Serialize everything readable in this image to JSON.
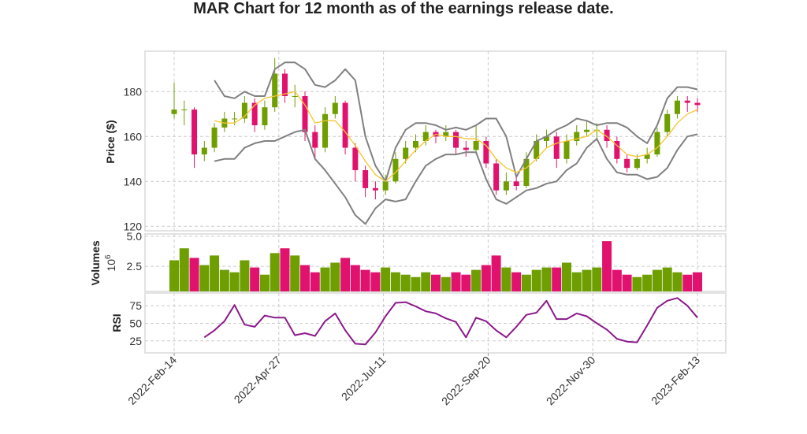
{
  "chart_data": {
    "type": "candlestick",
    "title": "MAR Chart for 12 month as of the earnings release date.",
    "colors": {
      "up": "#6e9e00",
      "down": "#e0126e",
      "bollinger": "#808080",
      "sma": "#f7c531",
      "rsi": "#8b1a8b",
      "grid": "#cccccc",
      "frame": "#e3e3e3"
    },
    "x_ticks": [
      "2022-Feb-14",
      "2022-Apr-27",
      "2022-Jul-11",
      "2022-Sep-20",
      "2022-Nov-30",
      "2023-Feb-13"
    ],
    "grid": true,
    "panels": {
      "price": {
        "ylabel": "Price ($)",
        "ylim": [
          118,
          198
        ],
        "yticks": [
          120,
          140,
          160,
          180
        ]
      },
      "volume": {
        "ylabel": "Volumes",
        "unit": "10^6",
        "ylim": [
          0.4,
          5.2
        ],
        "yticks": [
          2.5,
          5.0
        ],
        "ytick_labels": [
          "2.5",
          "5.0"
        ]
      },
      "rsi": {
        "ylabel": "RSI",
        "ylim": [
          8,
          93
        ],
        "yticks": [
          25,
          50,
          75
        ]
      }
    },
    "columns": [
      "date",
      "open",
      "high",
      "low",
      "close",
      "volume_millions"
    ],
    "rows": [
      [
        "2022-02-14",
        170,
        184,
        168,
        172,
        3.0
      ],
      [
        "2022-02-21",
        172,
        176,
        165,
        172,
        4.0
      ],
      [
        "2022-02-28",
        172,
        173,
        146,
        152,
        3.2
      ],
      [
        "2022-03-07",
        152,
        158,
        149,
        155,
        2.6
      ],
      [
        "2022-03-14",
        155,
        166,
        153,
        164,
        3.4
      ],
      [
        "2022-03-21",
        164,
        171,
        162,
        168,
        2.2
      ],
      [
        "2022-03-28",
        168,
        171,
        165,
        168,
        2.0
      ],
      [
        "2022-04-04",
        168,
        178,
        166,
        175,
        3.0
      ],
      [
        "2022-04-11",
        175,
        177,
        162,
        165,
        2.4
      ],
      [
        "2022-04-18",
        165,
        176,
        163,
        173,
        1.8
      ],
      [
        "2022-04-25",
        173,
        195,
        171,
        188,
        3.6
      ],
      [
        "2022-05-02",
        188,
        190,
        175,
        178,
        4.0
      ],
      [
        "2022-05-09",
        178,
        183,
        173,
        178,
        3.4
      ],
      [
        "2022-05-16",
        178,
        180,
        158,
        162,
        2.6
      ],
      [
        "2022-05-23",
        162,
        165,
        150,
        155,
        2.0
      ],
      [
        "2022-05-30",
        155,
        173,
        153,
        170,
        2.4
      ],
      [
        "2022-06-06",
        170,
        178,
        168,
        175,
        2.8
      ],
      [
        "2022-06-13",
        175,
        176,
        152,
        155,
        3.2
      ],
      [
        "2022-06-20",
        155,
        157,
        140,
        145,
        2.6
      ],
      [
        "2022-06-27",
        145,
        147,
        133,
        137,
        2.2
      ],
      [
        "2022-07-04",
        137,
        140,
        132,
        136,
        2.0
      ],
      [
        "2022-07-11",
        136,
        143,
        134,
        140,
        2.4
      ],
      [
        "2022-07-18",
        140,
        153,
        139,
        150,
        2.0
      ],
      [
        "2022-07-25",
        150,
        158,
        148,
        155,
        1.8
      ],
      [
        "2022-08-01",
        155,
        161,
        153,
        158,
        1.6
      ],
      [
        "2022-08-08",
        158,
        165,
        156,
        162,
        2.0
      ],
      [
        "2022-08-15",
        162,
        163,
        157,
        160,
        1.8
      ],
      [
        "2022-08-22",
        160,
        165,
        158,
        162,
        1.6
      ],
      [
        "2022-08-29",
        162,
        163,
        152,
        155,
        2.0
      ],
      [
        "2022-09-05",
        155,
        158,
        151,
        154,
        1.8
      ],
      [
        "2022-09-12",
        154,
        165,
        152,
        158,
        2.2
      ],
      [
        "2022-09-19",
        158,
        160,
        146,
        148,
        2.6
      ],
      [
        "2022-09-26",
        148,
        150,
        134,
        136,
        3.4
      ],
      [
        "2022-10-03",
        136,
        144,
        134,
        140,
        2.4
      ],
      [
        "2022-10-10",
        140,
        142,
        136,
        138,
        2.0
      ],
      [
        "2022-10-17",
        138,
        153,
        137,
        150,
        1.8
      ],
      [
        "2022-10-24",
        150,
        161,
        149,
        158,
        2.2
      ],
      [
        "2022-10-31",
        158,
        163,
        155,
        160,
        2.4
      ],
      [
        "2022-11-07",
        160,
        162,
        146,
        150,
        2.4
      ],
      [
        "2022-11-14",
        150,
        161,
        148,
        158,
        2.8
      ],
      [
        "2022-11-21",
        158,
        165,
        156,
        162,
        2.0
      ],
      [
        "2022-11-28",
        162,
        167,
        160,
        163,
        2.2
      ],
      [
        "2022-12-05",
        163,
        166,
        158,
        163,
        2.4
      ],
      [
        "2022-12-12",
        163,
        165,
        155,
        158,
        4.6
      ],
      [
        "2022-12-19",
        158,
        160,
        148,
        150,
        2.2
      ],
      [
        "2022-12-26",
        150,
        152,
        144,
        146,
        1.8
      ],
      [
        "2023-01-02",
        146,
        152,
        145,
        150,
        1.6
      ],
      [
        "2023-01-09",
        150,
        155,
        148,
        152,
        1.8
      ],
      [
        "2023-01-16",
        152,
        164,
        151,
        162,
        2.2
      ],
      [
        "2023-01-23",
        162,
        172,
        160,
        170,
        2.4
      ],
      [
        "2023-01-30",
        170,
        178,
        168,
        176,
        2.0
      ],
      [
        "2023-02-06",
        176,
        178,
        171,
        175,
        1.8
      ],
      [
        "2023-02-13",
        175,
        177,
        171,
        174,
        2.0
      ]
    ],
    "bollinger_upper": [
      null,
      null,
      null,
      null,
      185,
      178,
      177,
      180,
      178,
      178,
      190,
      193,
      193,
      190,
      183,
      182,
      185,
      190,
      185,
      160,
      147,
      140,
      155,
      163,
      166,
      166,
      165,
      163,
      164,
      163,
      165,
      168,
      168,
      160,
      142,
      150,
      158,
      160,
      163,
      165,
      168,
      167,
      165,
      166,
      166,
      164,
      160,
      157,
      165,
      177,
      182,
      182,
      181
    ],
    "sma": [
      null,
      null,
      null,
      null,
      167,
      166,
      166,
      169,
      174,
      177,
      178,
      179,
      180,
      174,
      166,
      167,
      167,
      162,
      156,
      149,
      143,
      140,
      144,
      149,
      154,
      158,
      161,
      160,
      160,
      159,
      159,
      156,
      150,
      146,
      144,
      146,
      150,
      155,
      157,
      158,
      159,
      160,
      163,
      160,
      156,
      152,
      151,
      152,
      155,
      160,
      166,
      170,
      172
    ],
    "bollinger_lower": [
      null,
      null,
      null,
      null,
      149,
      150,
      150,
      155,
      157,
      158,
      158,
      160,
      162,
      163,
      150,
      145,
      139,
      133,
      125,
      121,
      128,
      132,
      131,
      132,
      140,
      147,
      150,
      152,
      152,
      153,
      153,
      141,
      132,
      130,
      133,
      136,
      137,
      139,
      140,
      145,
      148,
      155,
      159,
      150,
      144,
      143,
      143,
      141,
      142,
      146,
      154,
      160,
      161
    ],
    "rsi": [
      null,
      null,
      null,
      30,
      40,
      53,
      76,
      48,
      45,
      61,
      58,
      58,
      33,
      36,
      32,
      53,
      64,
      40,
      21,
      20,
      37,
      60,
      79,
      80,
      74,
      67,
      64,
      57,
      52,
      30,
      58,
      53,
      40,
      30,
      45,
      62,
      65,
      82,
      56,
      56,
      64,
      60,
      50,
      41,
      28,
      24,
      23,
      47,
      72,
      82,
      86,
      75,
      58
    ]
  }
}
